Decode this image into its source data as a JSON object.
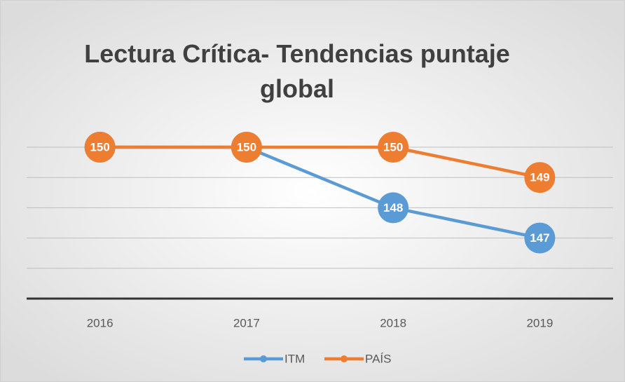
{
  "chart_data": {
    "type": "line",
    "title": "Lectura Crítica- Tendencias puntaje global",
    "categories": [
      "2016",
      "2017",
      "2018",
      "2019"
    ],
    "series": [
      {
        "name": "ITM",
        "color": "#5b9bd5",
        "values": [
          150,
          150,
          148,
          147
        ]
      },
      {
        "name": "PAÍS",
        "color": "#ed7d31",
        "values": [
          150,
          150,
          150,
          149
        ]
      }
    ],
    "ylim": [
      145,
      150
    ],
    "yticks": [
      145,
      146,
      147,
      148,
      149,
      150
    ],
    "grid": true,
    "legend": "bottom"
  }
}
